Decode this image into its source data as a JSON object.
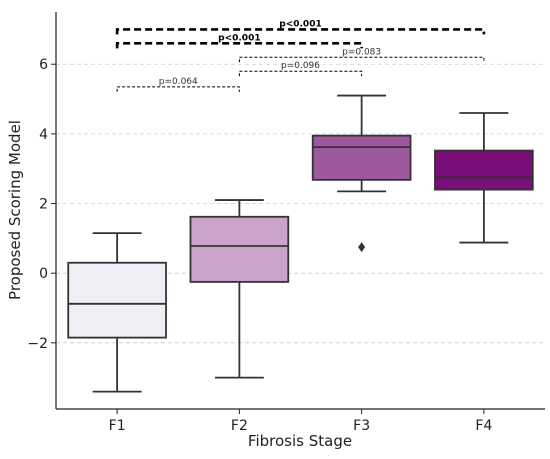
{
  "chart_data": {
    "type": "box",
    "xlabel": "Fibrosis Stage",
    "ylabel": "Proposed Scoring Model",
    "ylim": [
      -3.9,
      7.5
    ],
    "yticks": [
      -2,
      0,
      2,
      4,
      6
    ],
    "ytick_labels": [
      "−2",
      "0",
      "2",
      "4",
      "6"
    ],
    "grid": "horizontal-dashed",
    "categories": [
      "F1",
      "F2",
      "F3",
      "F4"
    ],
    "boxes": [
      {
        "category": "F1",
        "whisker_low": -3.4,
        "q1": -1.85,
        "median": -0.88,
        "q3": 0.3,
        "whisker_high": 1.15,
        "outliers": [],
        "color": "#f0eef4"
      },
      {
        "category": "F2",
        "whisker_low": -3.0,
        "q1": -0.25,
        "median": 0.78,
        "q3": 1.62,
        "whisker_high": 2.1,
        "outliers": [],
        "color": "#c9a3c9"
      },
      {
        "category": "F3",
        "whisker_low": 2.35,
        "q1": 2.68,
        "median": 3.62,
        "q3": 3.95,
        "whisker_high": 5.1,
        "outliers": [
          0.75
        ],
        "color": "#9e589e"
      },
      {
        "category": "F4",
        "whisker_low": 0.88,
        "q1": 2.4,
        "median": 2.75,
        "q3": 3.52,
        "whisker_high": 4.6,
        "outliers": [],
        "color": "#7a0e7a"
      }
    ],
    "significance": [
      {
        "from": "F1",
        "to": "F2",
        "y": 5.35,
        "label": "p=0.064",
        "bold": false
      },
      {
        "from": "F2",
        "to": "F3",
        "y": 5.8,
        "label": "p=0.096",
        "bold": false
      },
      {
        "from": "F2",
        "to": "F4",
        "y": 6.2,
        "label": "p=0.083",
        "bold": false
      },
      {
        "from": "F1",
        "to": "F3",
        "y": 6.6,
        "label": "p<0.001",
        "bold": true
      },
      {
        "from": "F1",
        "to": "F4",
        "y": 7.0,
        "label": "p<0.001",
        "bold": true
      }
    ]
  }
}
